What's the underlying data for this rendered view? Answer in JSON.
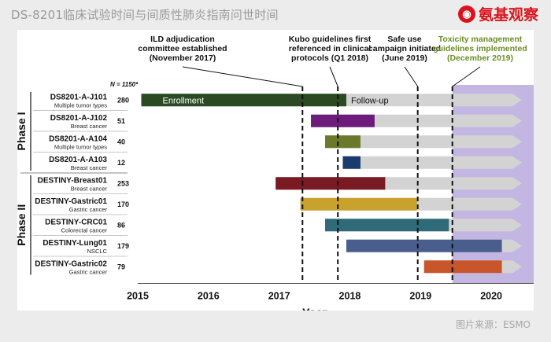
{
  "header": {
    "title": "DS-8201临床试验时间与间质性肺炎指南问世时间",
    "brand": "氨基观察"
  },
  "footer": {
    "source": "图片来源：ESMO"
  },
  "colors": {
    "background": "#ececec",
    "panel": "#ffffff",
    "followup_bar": "#d3d3d3",
    "highlight_region": "#b9a9dd",
    "milestone_label": "#111111",
    "highlight_label": "#6b8e23",
    "brand": "#d9141c"
  },
  "chart_data": {
    "type": "gantt",
    "xlabel": "Year",
    "x_ticks": [
      "2015",
      "2016",
      "2017",
      "2018",
      "2019",
      "2020"
    ],
    "xlim": [
      2015,
      2020.6
    ],
    "n_header": "N = 1150*",
    "phases": [
      {
        "label": "Phase I",
        "rows": [
          0,
          3
        ]
      },
      {
        "label": "Phase II",
        "rows": [
          4,
          8
        ]
      }
    ],
    "bar_labels": {
      "enrollment": "Enrollment",
      "followup": "Follow-up"
    },
    "rows": [
      {
        "name": "DS8201-A-J101",
        "sub": "Multiple tumor types",
        "n": "280",
        "enroll_start": 2015.05,
        "enroll_end": 2017.95,
        "followup_end": 2020.3,
        "color": "#2b4a24"
      },
      {
        "name": "DS8201-A-J102",
        "sub": "Breast cancer",
        "n": "51",
        "enroll_start": 2017.45,
        "enroll_end": 2018.35,
        "followup_end": 2020.3,
        "color": "#6e1c7c"
      },
      {
        "name": "DS8201-A-A104",
        "sub": "Multiple tumor types",
        "n": "40",
        "enroll_start": 2017.65,
        "enroll_end": 2018.15,
        "followup_end": 2020.3,
        "color": "#6b7a2a"
      },
      {
        "name": "DS8201-A-A103",
        "sub": "Breast cancer",
        "n": "12",
        "enroll_start": 2017.9,
        "enroll_end": 2018.15,
        "followup_end": 2020.3,
        "color": "#1a3b6e"
      },
      {
        "name": "DESTINY-Breast01",
        "sub": "Breast cancer",
        "n": "253",
        "enroll_start": 2016.95,
        "enroll_end": 2018.5,
        "followup_end": 2020.3,
        "color": "#7a1a22"
      },
      {
        "name": "DESTINY-Gastric01",
        "sub": "Gastric cancer",
        "n": "170",
        "enroll_start": 2017.3,
        "enroll_end": 2018.95,
        "followup_end": 2020.3,
        "color": "#c9a22e"
      },
      {
        "name": "DESTINY-CRC01",
        "sub": "Colorectal cancer",
        "n": "86",
        "enroll_start": 2017.65,
        "enroll_end": 2019.4,
        "followup_end": 2020.3,
        "color": "#2e6a78"
      },
      {
        "name": "DESTINY-Lung01",
        "sub": "NSCLC",
        "n": "179",
        "enroll_start": 2017.95,
        "enroll_end": 2020.15,
        "followup_end": 2020.3,
        "color": "#4a5e8e"
      },
      {
        "name": "DESTINY-Gastric02",
        "sub": "Gastric cancer",
        "n": "79",
        "enroll_start": 2019.05,
        "enroll_end": 2020.15,
        "followup_end": 2020.3,
        "color": "#c9552a"
      }
    ],
    "milestones": [
      {
        "x": 2017.33,
        "lines": [
          "ILD adjudication",
          "committee established",
          "(November 2017)"
        ],
        "highlight": false
      },
      {
        "x": 2017.83,
        "lines": [
          "Kubo guidelines first",
          "referenced in clinical",
          "protocols (Q1 2018)"
        ],
        "highlight": false
      },
      {
        "x": 2018.96,
        "lines": [
          "Safe use",
          "campaign initiated",
          "(June 2019)"
        ],
        "highlight": false
      },
      {
        "x": 2019.45,
        "lines": [
          "Toxicity management",
          "guidelines implemented",
          "(December 2019)"
        ],
        "highlight": true
      }
    ],
    "highlight_region": [
      2019.45,
      2020.6
    ]
  }
}
